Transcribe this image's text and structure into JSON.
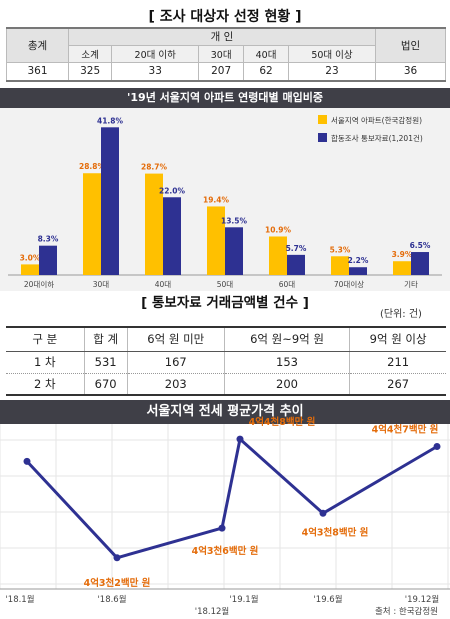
{
  "table1": {
    "title": "[ 조사 대상자 선정 현황 ]",
    "total_header": "총계",
    "individual_header": "개 인",
    "corporate_header": "법인",
    "sub_headers": [
      "소계",
      "20대 이하",
      "30대",
      "40대",
      "50대 이상"
    ],
    "values": [
      "361",
      "325",
      "33",
      "207",
      "62",
      "23",
      "36"
    ]
  },
  "table2": {
    "title": "[ 통보자료 거래금액별 건수 ]",
    "unit": "(단위: 건)",
    "headers": [
      "구 분",
      "합 계",
      "6억 원 미만",
      "6억 원~9억 원",
      "9억 원 이상"
    ],
    "rows": [
      [
        "1 차",
        "531",
        "167",
        "153",
        "211"
      ],
      [
        "2 차",
        "670",
        "203",
        "200",
        "267"
      ]
    ]
  },
  "chart_data": [
    {
      "type": "bar",
      "title": "'19년 서울지역 아파트 연령대별 매입비중",
      "categories": [
        "20대이하",
        "30대",
        "40대",
        "50대",
        "60대",
        "70대이상",
        "기타"
      ],
      "ylim": [
        0,
        45
      ],
      "legend_position": "top-right",
      "series": [
        {
          "name": "서울지역 아파트(한국감정원)",
          "color": "#ffc000",
          "values": [
            3.0,
            28.8,
            28.7,
            19.4,
            10.9,
            5.3,
            3.9
          ],
          "labels": [
            "3.0%",
            "28.8%",
            "28.7%",
            "19.4%",
            "10.9%",
            "5.3%",
            "3.9%"
          ]
        },
        {
          "name": "합동조사 통보자료(1,201건)",
          "color": "#2e3192",
          "values": [
            8.3,
            41.8,
            22.0,
            13.5,
            5.7,
            2.2,
            6.5
          ],
          "labels": [
            "8.3%",
            "41.8%",
            "22.0%",
            "13.5%",
            "5.7%",
            "2.2%",
            "6.5%"
          ]
        }
      ]
    },
    {
      "type": "line",
      "title": "서울지역 전세 평균가격 추이",
      "x": [
        "'18.1월",
        "'18.6월",
        "'18.12월",
        "'19.1월",
        "'19.6월",
        "'19.12월"
      ],
      "values": [
        44500,
        43200,
        43600,
        44800,
        43800,
        44700
      ],
      "ylim": [
        42900,
        44950
      ],
      "point_labels": [
        "",
        "4억3천2백만 원",
        "4억3천6백만 원",
        "4억4천8백만 원",
        "4억3천8백만 원",
        "4억4천7백만 원"
      ],
      "line_color": "#2e3192",
      "label_color": "#e46c0a",
      "source": "출처 : 한국감정원"
    }
  ]
}
